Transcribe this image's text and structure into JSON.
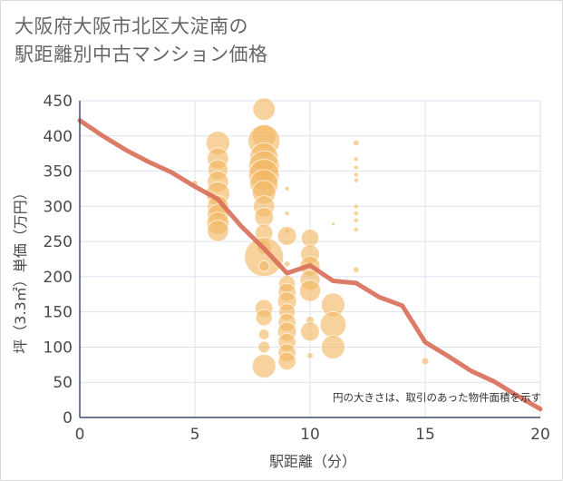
{
  "page": {
    "title": "大阪府大阪市北区大淀南の\n駅距離別中古マンション価格"
  },
  "chart_data": {
    "type": "scatter",
    "title": "大阪府大阪市北区大淀南の\n駅距離別中古マンション価格",
    "xlabel": "駅距離（分）",
    "ylabel": "坪（3.3㎡）単価（万円）",
    "note": "円の大きさは、取引のあった物件面積を示す",
    "xlim": [
      0,
      20
    ],
    "ylim": [
      0,
      450
    ],
    "xticks": [
      0,
      5,
      10,
      15,
      20
    ],
    "yticks": [
      0,
      50,
      100,
      150,
      200,
      250,
      300,
      350,
      400,
      450
    ],
    "grid": true,
    "colors": {
      "bubble": "#f2b661",
      "trend": "#d9705a",
      "grid": "#dbe3ec",
      "axis": "#3d4e6b"
    },
    "trend_line": {
      "x": [
        0,
        1,
        2,
        3,
        4,
        5,
        6,
        7,
        8,
        9,
        10,
        11,
        12,
        13,
        14,
        15,
        16,
        17,
        18,
        19,
        20
      ],
      "y": [
        422,
        400,
        380,
        363,
        348,
        328,
        310,
        272,
        240,
        205,
        216,
        194,
        191,
        171,
        159,
        107,
        87,
        66,
        51,
        31,
        12
      ]
    },
    "bubbles": [
      {
        "x": 5,
        "y": 333,
        "s": 0.25
      },
      {
        "x": 6,
        "y": 390,
        "s": 1.0
      },
      {
        "x": 6,
        "y": 368,
        "s": 0.9
      },
      {
        "x": 6,
        "y": 352,
        "s": 0.85
      },
      {
        "x": 6,
        "y": 335,
        "s": 0.9
      },
      {
        "x": 6,
        "y": 318,
        "s": 1.0
      },
      {
        "x": 6,
        "y": 300,
        "s": 0.9
      },
      {
        "x": 6,
        "y": 288,
        "s": 0.9
      },
      {
        "x": 6,
        "y": 276,
        "s": 0.95
      },
      {
        "x": 6,
        "y": 265,
        "s": 0.9
      },
      {
        "x": 8,
        "y": 438,
        "s": 0.95
      },
      {
        "x": 8,
        "y": 400,
        "s": 1.0
      },
      {
        "x": 8,
        "y": 393,
        "s": 1.35
      },
      {
        "x": 8,
        "y": 370,
        "s": 1.2
      },
      {
        "x": 8,
        "y": 357,
        "s": 1.3
      },
      {
        "x": 8,
        "y": 345,
        "s": 1.3
      },
      {
        "x": 8,
        "y": 332,
        "s": 1.2
      },
      {
        "x": 8,
        "y": 320,
        "s": 1.0
      },
      {
        "x": 8,
        "y": 300,
        "s": 0.9
      },
      {
        "x": 8,
        "y": 285,
        "s": 0.8
      },
      {
        "x": 8,
        "y": 262,
        "s": 0.75
      },
      {
        "x": 8,
        "y": 242,
        "s": 0.6
      },
      {
        "x": 8,
        "y": 228,
        "s": 1.65
      },
      {
        "x": 8,
        "y": 215,
        "s": 0.45
      },
      {
        "x": 8,
        "y": 155,
        "s": 0.75
      },
      {
        "x": 8,
        "y": 142,
        "s": 0.7
      },
      {
        "x": 8,
        "y": 118,
        "s": 0.45
      },
      {
        "x": 8,
        "y": 100,
        "s": 0.5
      },
      {
        "x": 8,
        "y": 73,
        "s": 1.0
      },
      {
        "x": 9,
        "y": 325,
        "s": 0.2
      },
      {
        "x": 9,
        "y": 290,
        "s": 0.2
      },
      {
        "x": 9,
        "y": 265,
        "s": 0.2
      },
      {
        "x": 9,
        "y": 258,
        "s": 0.8
      },
      {
        "x": 9,
        "y": 218,
        "s": 0.25
      },
      {
        "x": 9,
        "y": 190,
        "s": 0.7
      },
      {
        "x": 9,
        "y": 178,
        "s": 0.75
      },
      {
        "x": 9,
        "y": 165,
        "s": 0.8
      },
      {
        "x": 9,
        "y": 150,
        "s": 0.7
      },
      {
        "x": 9,
        "y": 135,
        "s": 0.75
      },
      {
        "x": 9,
        "y": 122,
        "s": 0.8
      },
      {
        "x": 9,
        "y": 107,
        "s": 0.75
      },
      {
        "x": 9,
        "y": 92,
        "s": 0.75
      },
      {
        "x": 9,
        "y": 80,
        "s": 0.75
      },
      {
        "x": 10,
        "y": 255,
        "s": 0.75
      },
      {
        "x": 10,
        "y": 232,
        "s": 0.8
      },
      {
        "x": 10,
        "y": 215,
        "s": 0.85
      },
      {
        "x": 10,
        "y": 195,
        "s": 0.85
      },
      {
        "x": 10,
        "y": 180,
        "s": 0.9
      },
      {
        "x": 10,
        "y": 138,
        "s": 0.35
      },
      {
        "x": 10,
        "y": 122,
        "s": 0.8
      },
      {
        "x": 10,
        "y": 88,
        "s": 0.25
      },
      {
        "x": 11,
        "y": 275,
        "s": 0.15
      },
      {
        "x": 11,
        "y": 160,
        "s": 1.0
      },
      {
        "x": 11,
        "y": 132,
        "s": 1.1
      },
      {
        "x": 11,
        "y": 100,
        "s": 1.0
      },
      {
        "x": 12,
        "y": 390,
        "s": 0.25
      },
      {
        "x": 12,
        "y": 367,
        "s": 0.2
      },
      {
        "x": 12,
        "y": 355,
        "s": 0.2
      },
      {
        "x": 12,
        "y": 345,
        "s": 0.2
      },
      {
        "x": 12,
        "y": 337,
        "s": 0.2
      },
      {
        "x": 12,
        "y": 300,
        "s": 0.2
      },
      {
        "x": 12,
        "y": 290,
        "s": 0.2
      },
      {
        "x": 12,
        "y": 280,
        "s": 0.2
      },
      {
        "x": 12,
        "y": 267,
        "s": 0.2
      },
      {
        "x": 12,
        "y": 210,
        "s": 0.25
      },
      {
        "x": 15,
        "y": 80,
        "s": 0.3
      }
    ]
  }
}
